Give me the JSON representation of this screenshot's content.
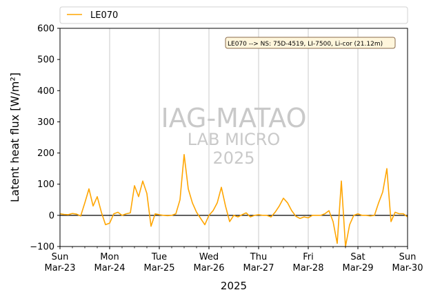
{
  "chart_data": {
    "type": "line",
    "title": "",
    "xlabel": "2025",
    "ylabel": "Latent heat flux [W/m²]",
    "ylim": [
      -100,
      600
    ],
    "yticks": [
      -100,
      0,
      100,
      200,
      300,
      400,
      500,
      600
    ],
    "xlim_days": [
      "2025-03-23",
      "2025-03-30"
    ],
    "xtick_labels": [
      {
        "day": "Sun",
        "date": "Mar-23"
      },
      {
        "day": "Mon",
        "date": "Mar-24"
      },
      {
        "day": "Tue",
        "date": "Mar-25"
      },
      {
        "day": "Wed",
        "date": "Mar-26"
      },
      {
        "day": "Thu",
        "date": "Mar-27"
      },
      {
        "day": "Fri",
        "date": "Mar-28"
      },
      {
        "day": "Sat",
        "date": "Mar-29"
      },
      {
        "day": "Sun",
        "date": "Mar-30"
      }
    ],
    "grid": "vertical",
    "legend_position": "top",
    "zero_line": true,
    "annotation": "LE070 --> NS: 75D-4519, LI-7500, Li-cor (21.12m)",
    "watermark": [
      "IAG-MATAO",
      "LAB MICRO",
      "2025"
    ],
    "series": [
      {
        "name": "LE070",
        "color": "#ffa500",
        "x": [
          "2025-03-23 00:00",
          "2025-03-23 02:00",
          "2025-03-23 04:00",
          "2025-03-23 06:00",
          "2025-03-23 08:00",
          "2025-03-23 10:00",
          "2025-03-23 12:00",
          "2025-03-23 14:00",
          "2025-03-23 16:00",
          "2025-03-23 18:00",
          "2025-03-23 20:00",
          "2025-03-23 22:00",
          "2025-03-24 00:00",
          "2025-03-24 02:00",
          "2025-03-24 04:00",
          "2025-03-24 06:00",
          "2025-03-24 08:00",
          "2025-03-24 10:00",
          "2025-03-24 12:00",
          "2025-03-24 14:00",
          "2025-03-24 16:00",
          "2025-03-24 18:00",
          "2025-03-24 20:00",
          "2025-03-24 22:00",
          "2025-03-25 00:00",
          "2025-03-25 02:00",
          "2025-03-25 04:00",
          "2025-03-25 06:00",
          "2025-03-25 08:00",
          "2025-03-25 10:00",
          "2025-03-25 12:00",
          "2025-03-25 14:00",
          "2025-03-25 16:00",
          "2025-03-25 18:00",
          "2025-03-25 20:00",
          "2025-03-25 22:00",
          "2025-03-26 00:00",
          "2025-03-26 02:00",
          "2025-03-26 04:00",
          "2025-03-26 06:00",
          "2025-03-26 08:00",
          "2025-03-26 10:00",
          "2025-03-26 12:00",
          "2025-03-26 14:00",
          "2025-03-26 16:00",
          "2025-03-26 18:00",
          "2025-03-26 20:00",
          "2025-03-26 22:00",
          "2025-03-27 00:00",
          "2025-03-27 02:00",
          "2025-03-27 04:00",
          "2025-03-27 06:00",
          "2025-03-27 08:00",
          "2025-03-27 10:00",
          "2025-03-27 12:00",
          "2025-03-27 14:00",
          "2025-03-27 16:00",
          "2025-03-27 18:00",
          "2025-03-27 20:00",
          "2025-03-27 22:00",
          "2025-03-28 00:00",
          "2025-03-28 02:00",
          "2025-03-28 04:00",
          "2025-03-28 06:00",
          "2025-03-28 08:00",
          "2025-03-28 10:00",
          "2025-03-28 12:00",
          "2025-03-28 14:00",
          "2025-03-28 16:00",
          "2025-03-28 18:00",
          "2025-03-28 20:00",
          "2025-03-28 22:00",
          "2025-03-29 00:00",
          "2025-03-29 02:00",
          "2025-03-29 04:00",
          "2025-03-29 06:00",
          "2025-03-29 08:00",
          "2025-03-29 10:00",
          "2025-03-29 12:00",
          "2025-03-29 14:00",
          "2025-03-29 16:00",
          "2025-03-29 18:00",
          "2025-03-29 20:00",
          "2025-03-29 22:00",
          "2025-03-30 00:00"
        ],
        "y": [
          5,
          3,
          2,
          6,
          4,
          -2,
          40,
          85,
          30,
          60,
          10,
          -30,
          -25,
          5,
          10,
          0,
          5,
          8,
          95,
          60,
          110,
          70,
          -35,
          5,
          2,
          0,
          -1,
          0,
          5,
          50,
          195,
          85,
          40,
          10,
          -10,
          -30,
          0,
          15,
          40,
          90,
          30,
          -20,
          0,
          -5,
          2,
          8,
          -5,
          0,
          2,
          0,
          0,
          -5,
          10,
          30,
          55,
          40,
          15,
          -3,
          -10,
          -5,
          -8,
          0,
          0,
          0,
          5,
          15,
          -20,
          -90,
          110,
          -100,
          -30,
          0,
          5,
          0,
          0,
          -2,
          0,
          40,
          75,
          150,
          -20,
          10,
          5,
          5,
          -5
        ]
      }
    ]
  }
}
